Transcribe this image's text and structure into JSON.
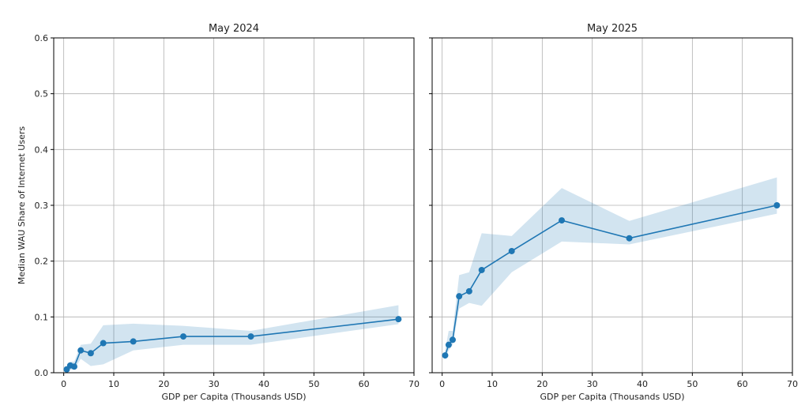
{
  "chart_data": [
    {
      "type": "line",
      "title": "May 2024",
      "xlabel": "GDP per Capita (Thousands USD)",
      "ylabel": "Median WAU Share of Internet Users",
      "xlim": [
        -2,
        70
      ],
      "ylim": [
        0,
        0.6
      ],
      "xticks": [
        0,
        10,
        20,
        30,
        40,
        50,
        60,
        70
      ],
      "yticks": [
        0.0,
        0.1,
        0.2,
        0.3,
        0.4,
        0.5,
        0.6
      ],
      "grid": true,
      "series": [
        {
          "color": "#1f77b4",
          "x": [
            0.6,
            1.3,
            2.1,
            3.4,
            5.4,
            7.9,
            13.9,
            23.9,
            37.4,
            66.9
          ],
          "y": [
            0.006,
            0.013,
            0.011,
            0.04,
            0.035,
            0.053,
            0.056,
            0.065,
            0.065,
            0.096
          ],
          "band_lower": [
            0.002,
            0.005,
            0.006,
            0.025,
            0.012,
            0.015,
            0.04,
            0.05,
            0.05,
            0.087
          ],
          "band_upper": [
            0.012,
            0.02,
            0.02,
            0.05,
            0.052,
            0.085,
            0.088,
            0.084,
            0.075,
            0.121
          ]
        }
      ]
    },
    {
      "type": "line",
      "title": "May 2025",
      "xlabel": "GDP per Capita (Thousands USD)",
      "ylabel": "",
      "xlim": [
        -2,
        70
      ],
      "ylim": [
        0,
        0.6
      ],
      "xticks": [
        0,
        10,
        20,
        30,
        40,
        50,
        60,
        70
      ],
      "yticks": [
        0.0,
        0.1,
        0.2,
        0.3,
        0.4,
        0.5,
        0.6
      ],
      "grid": true,
      "series": [
        {
          "color": "#1f77b4",
          "x": [
            0.6,
            1.3,
            2.1,
            3.4,
            5.4,
            7.9,
            13.9,
            23.9,
            37.4,
            66.9
          ],
          "y": [
            0.031,
            0.05,
            0.059,
            0.137,
            0.146,
            0.184,
            0.218,
            0.273,
            0.241,
            0.3
          ],
          "band_lower": [
            0.025,
            0.04,
            0.05,
            0.115,
            0.125,
            0.12,
            0.18,
            0.235,
            0.23,
            0.285
          ],
          "band_upper": [
            0.04,
            0.075,
            0.075,
            0.175,
            0.18,
            0.25,
            0.245,
            0.331,
            0.272,
            0.35
          ]
        }
      ]
    }
  ]
}
